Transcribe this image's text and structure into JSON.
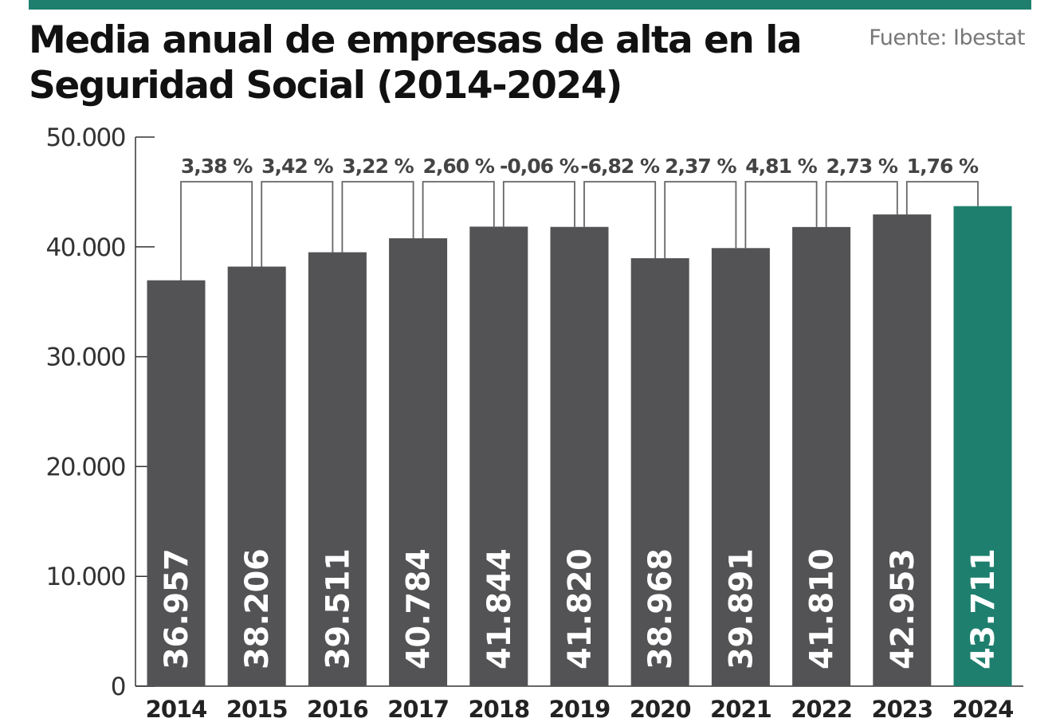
{
  "header": {
    "title": "Media anual de empresas de alta en la Seguridad Social (2014-2024)",
    "source": "Fuente: Ibestat"
  },
  "colors": {
    "accent": "#1e7f6e",
    "bar": "#535254",
    "highlight_bar": "#1e7f6e",
    "bracket": "#666666"
  },
  "chart_data": {
    "type": "bar",
    "title": "Media anual de empresas de alta en la Seguridad Social (2014-2024)",
    "categories": [
      "2014",
      "2015",
      "2016",
      "2017",
      "2018",
      "2019",
      "2020",
      "2021",
      "2022",
      "2023",
      "2024"
    ],
    "values": [
      36957,
      38206,
      39511,
      40784,
      41844,
      41820,
      38968,
      39891,
      41810,
      42953,
      43711
    ],
    "value_labels": [
      "36.957",
      "38.206",
      "39.511",
      "40.784",
      "41.844",
      "41.820",
      "38.968",
      "39.891",
      "41.810",
      "42.953",
      "43.711"
    ],
    "annual_change_labels": [
      "3,38 %",
      "3,42 %",
      "3,22 %",
      "2,60 %",
      "-0,06 %",
      "-6,82 %",
      "2,37 %",
      "4,81 %",
      "2,73 %",
      "1,76 %"
    ],
    "highlight_category": "2024",
    "ylim": [
      0,
      50000
    ],
    "yticks": [
      0,
      10000,
      20000,
      30000,
      40000,
      50000
    ],
    "ytick_labels": [
      "0",
      "10.000",
      "20.000",
      "30.000",
      "40.000",
      "50.000"
    ],
    "xlabel": "",
    "ylabel": "",
    "grid": false,
    "legend": "none"
  }
}
